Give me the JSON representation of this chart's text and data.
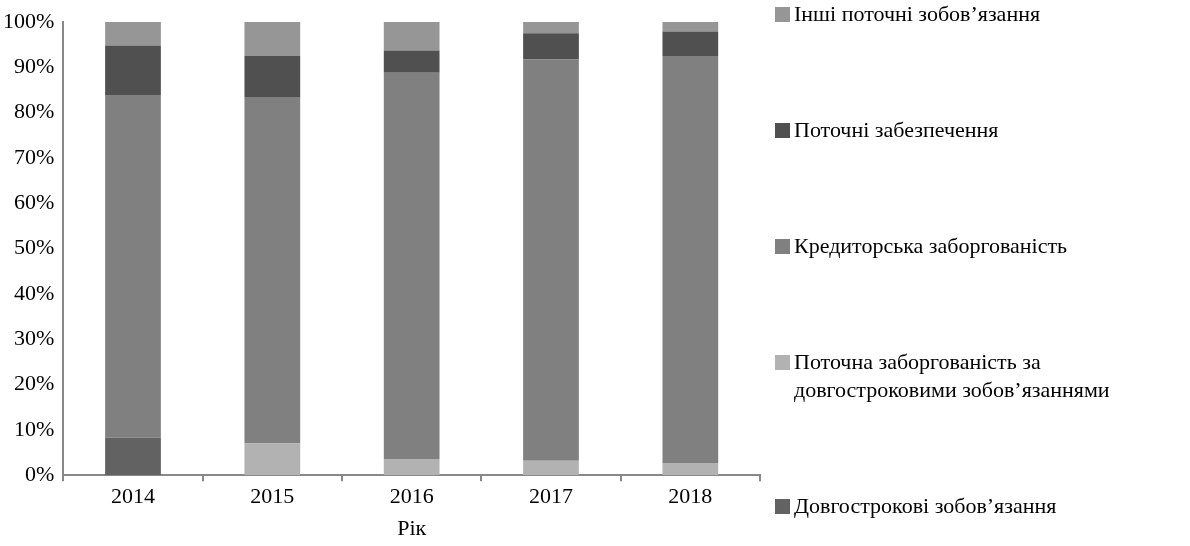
{
  "chart_data": {
    "type": "bar",
    "stacked": true,
    "xlabel": "Рік",
    "categories": [
      "2014",
      "2015",
      "2016",
      "2017",
      "2018"
    ],
    "ylim": [
      0,
      100
    ],
    "yticks": [
      {
        "value": 0,
        "label": "0%"
      },
      {
        "value": 10,
        "label": "10%"
      },
      {
        "value": 20,
        "label": "20%"
      },
      {
        "value": 30,
        "label": "30%"
      },
      {
        "value": 40,
        "label": "40%"
      },
      {
        "value": 50,
        "label": "50%"
      },
      {
        "value": 60,
        "label": "60%"
      },
      {
        "value": 70,
        "label": "70%"
      },
      {
        "value": 80,
        "label": "80%"
      },
      {
        "value": 90,
        "label": "90%"
      },
      {
        "value": 100,
        "label": "100%"
      }
    ],
    "grid": false,
    "legend": "right",
    "series": [
      {
        "name": "Довгострокові зобов’язання",
        "color": "#626262",
        "values": [
          8.3,
          0,
          0,
          0,
          0
        ]
      },
      {
        "name": "Поточна заборгованість за довгостроковими зобов’язаннями",
        "color": "#b2b2b2",
        "values": [
          0,
          7.0,
          3.6,
          3.2,
          2.7
        ]
      },
      {
        "name": "Кредиторська заборгованість",
        "color": "#808080",
        "values": [
          75.6,
          76.3,
          85.2,
          88.5,
          89.8
        ]
      },
      {
        "name": "Поточні забезпечення",
        "color": "#505050",
        "values": [
          10.9,
          9.2,
          4.9,
          5.8,
          5.4
        ]
      },
      {
        "name": "Інші поточні зобов’язання",
        "color": "#969696",
        "values": [
          5.2,
          7.5,
          6.3,
          2.5,
          2.1
        ]
      }
    ]
  }
}
